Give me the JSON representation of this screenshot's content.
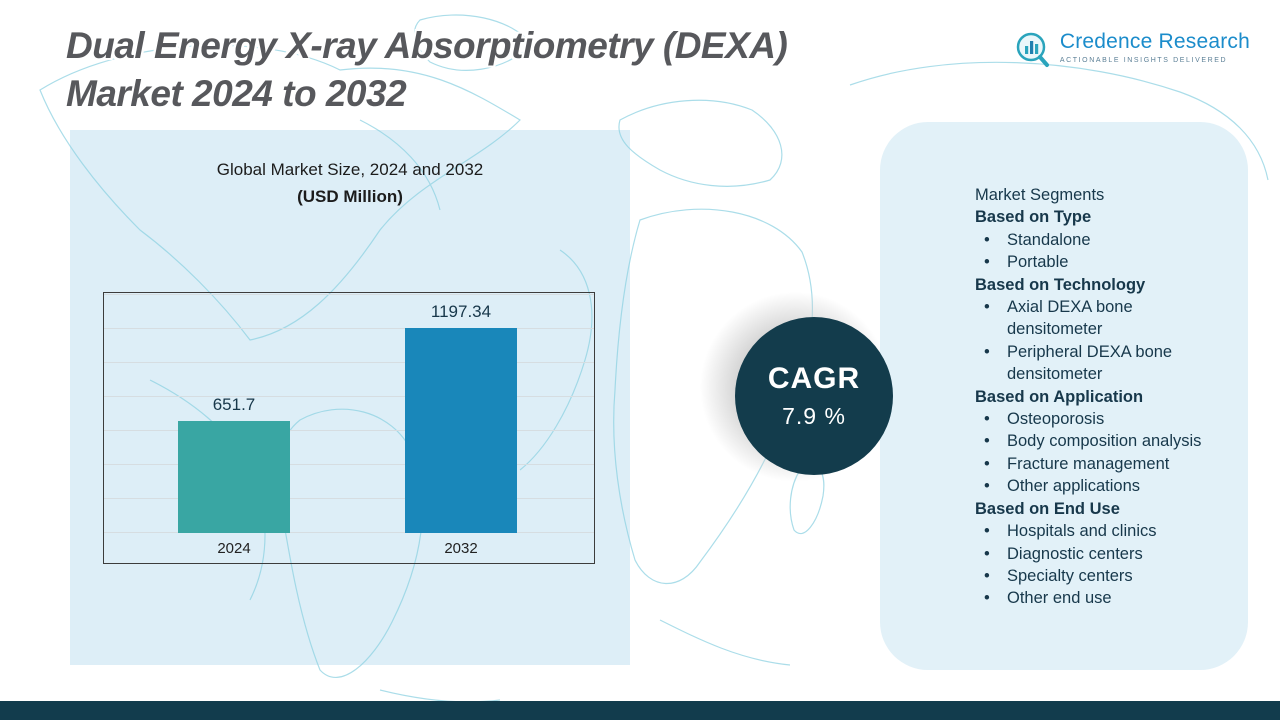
{
  "header": {
    "title_line1": "Dual Energy X-ray Absorptiometry (DEXA)",
    "title_line2": "Market 2024 to 2032",
    "logo": {
      "name": "Credence Research",
      "tagline": "Actionable Insights Delivered"
    }
  },
  "chart_data": {
    "type": "bar",
    "title": "Global Market Size, 2024 and 2032",
    "subtitle": "(USD Million)",
    "categories": [
      "2024",
      "2032"
    ],
    "values": [
      651.7,
      1197.34
    ],
    "value_labels": [
      "651.7",
      "1197.34"
    ],
    "bar_colors": [
      "#39a6a3",
      "#1987ba"
    ],
    "xlabel": "",
    "ylabel": "",
    "ylim": [
      0,
      1400
    ],
    "grid": true,
    "legend": false
  },
  "cagr": {
    "label": "CAGR",
    "value": "7.9 %"
  },
  "segments": {
    "heading": "Market Segments",
    "groups": [
      {
        "title": "Based on Type",
        "items": [
          "Standalone",
          "Portable"
        ]
      },
      {
        "title": "Based on Technology",
        "items": [
          "Axial DEXA bone densitometer",
          "Peripheral DEXA bone densitometer"
        ]
      },
      {
        "title": "Based on Application",
        "items": [
          "Osteoporosis",
          "Body composition analysis",
          "Fracture management",
          "Other applications"
        ]
      },
      {
        "title": "Based on End Use",
        "items": [
          "Hospitals and clinics",
          "Diagnostic centers",
          "Specialty centers",
          "Other end use"
        ]
      }
    ]
  },
  "colors": {
    "accent_teal": "#39a6a3",
    "accent_blue": "#1987ba",
    "dark_navy": "#133c4c",
    "panel_blue": "#ddeef7",
    "map_line": "#8fd2e2",
    "logo_blue": "#1b8ccb"
  }
}
